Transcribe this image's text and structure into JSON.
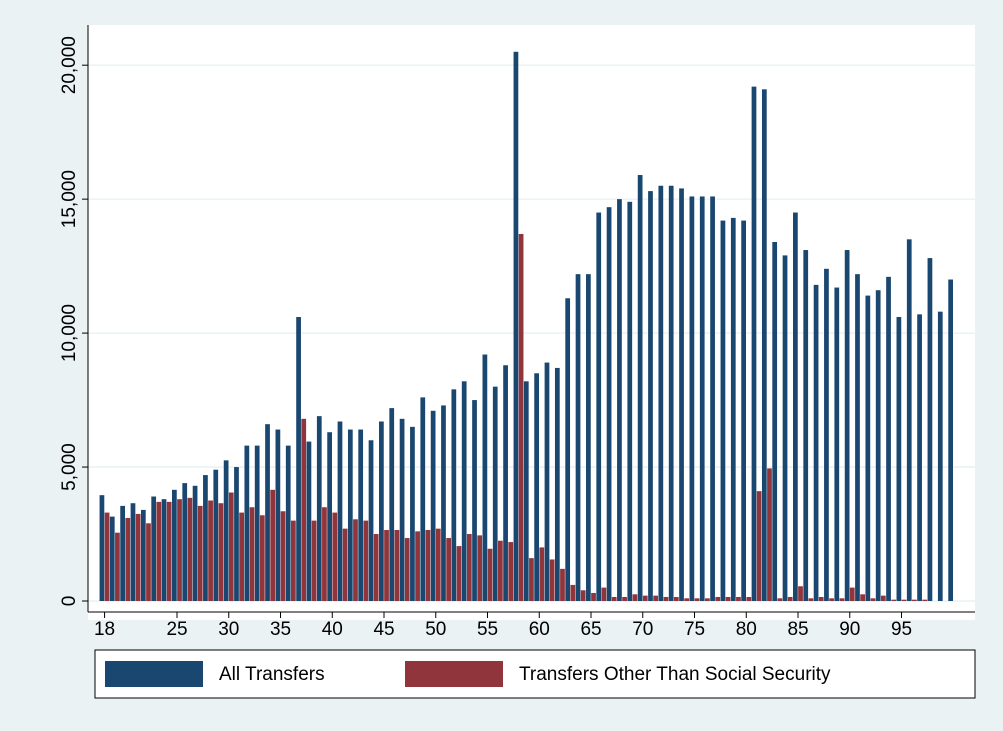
{
  "chart_data": {
    "type": "bar",
    "x": [
      18,
      19,
      20,
      21,
      22,
      23,
      24,
      25,
      26,
      27,
      28,
      29,
      30,
      31,
      32,
      33,
      34,
      35,
      36,
      37,
      38,
      39,
      40,
      41,
      42,
      43,
      44,
      45,
      46,
      47,
      48,
      49,
      50,
      51,
      52,
      53,
      54,
      55,
      56,
      57,
      58,
      59,
      60,
      61,
      62,
      63,
      64,
      65,
      66,
      67,
      68,
      69,
      70,
      71,
      72,
      73,
      74,
      75,
      76,
      77,
      78,
      79,
      80,
      81,
      82,
      83,
      84,
      85,
      86,
      87,
      88,
      89,
      90,
      91,
      92,
      93,
      94,
      95,
      96,
      97,
      98,
      99,
      100
    ],
    "series": [
      {
        "name": "All Transfers",
        "color": "#1a476f",
        "values": [
          3950,
          3150,
          3550,
          3650,
          3400,
          3900,
          3800,
          4150,
          4400,
          4300,
          4700,
          4900,
          5250,
          5000,
          5800,
          5800,
          6600,
          6400,
          5800,
          10600,
          5950,
          6900,
          6300,
          6700,
          6400,
          6400,
          6000,
          6700,
          7200,
          6800,
          6500,
          7600,
          7100,
          7300,
          7900,
          8200,
          7500,
          9200,
          8000,
          8800,
          20500,
          8200,
          8500,
          8900,
          8700,
          11300,
          12200,
          12200,
          14500,
          14700,
          15000,
          14900,
          15900,
          15300,
          15500,
          15500,
          15400,
          15100,
          15100,
          15100,
          14200,
          14300,
          14200,
          19200,
          19100,
          13400,
          12900,
          14500,
          13100,
          11800,
          12400,
          11700,
          13100,
          12200,
          11400,
          11600,
          12100,
          10600,
          13500,
          10700,
          12800,
          10800,
          12000
        ]
      },
      {
        "name": "Transfers Other Than Social Security",
        "color": "#90353b",
        "values": [
          3300,
          2550,
          3100,
          3250,
          2900,
          3700,
          3700,
          3800,
          3850,
          3550,
          3750,
          3650,
          4050,
          3300,
          3500,
          3200,
          4150,
          3350,
          3000,
          6800,
          3000,
          3500,
          3300,
          2700,
          3050,
          3000,
          2500,
          2650,
          2650,
          2350,
          2600,
          2650,
          2700,
          2350,
          2050,
          2500,
          2450,
          1950,
          2250,
          2200,
          13700,
          1600,
          2000,
          1550,
          1200,
          600,
          400,
          300,
          500,
          150,
          150,
          250,
          200,
          200,
          150,
          150,
          100,
          100,
          100,
          150,
          150,
          150,
          150,
          4100,
          4950,
          100,
          150,
          550,
          100,
          150,
          100,
          100,
          500,
          250,
          100,
          200,
          50,
          50,
          50,
          50,
          0,
          0,
          0
        ]
      }
    ],
    "xlim": [
      16.4,
      102.1
    ],
    "xticks": [
      18,
      25,
      30,
      35,
      40,
      45,
      50,
      55,
      60,
      65,
      70,
      75,
      80,
      85,
      90,
      95
    ],
    "ylim": [
      0,
      21500
    ],
    "yticks": [
      0,
      {
        "value": 5000,
        "label": "5,000"
      },
      {
        "value": 10000,
        "label": "10,000"
      },
      {
        "value": 15000,
        "label": "15,000"
      },
      {
        "value": 20000,
        "label": "20,000"
      }
    ],
    "grid": true
  }
}
